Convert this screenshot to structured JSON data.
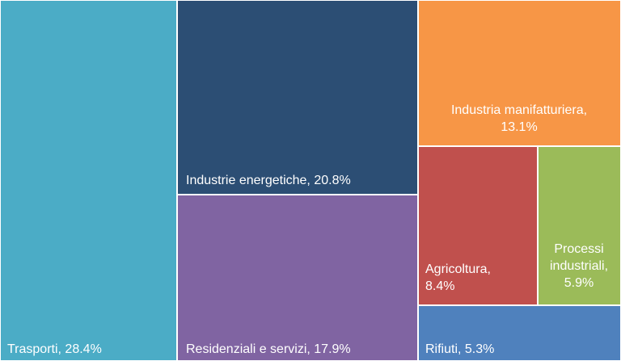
{
  "chart_data": {
    "type": "treemap",
    "title": "",
    "items": [
      {
        "label": "Trasporti",
        "value": 28.4,
        "text": "Trasporti, 28.4%",
        "color": "#4BACC6"
      },
      {
        "label": "Industrie energetiche",
        "value": 20.8,
        "text": "Industrie energetiche, 20.8%",
        "color": "#2C4E74"
      },
      {
        "label": "Residenziali e servizi",
        "value": 17.9,
        "text": "Residenziali e servizi, 17.9%",
        "color": "#8064A2"
      },
      {
        "label": "Industria manifatturiera",
        "value": 13.1,
        "text": "Industria manifatturiera,|13.1%",
        "color": "#F79646"
      },
      {
        "label": "Agricoltura",
        "value": 8.4,
        "text": "Agricoltura,|8.4%",
        "color": "#C0504D"
      },
      {
        "label": "Processi industriali",
        "value": 5.9,
        "text": "Processi|industriali,|5.9%",
        "color": "#9BBB59"
      },
      {
        "label": "Rifiuti",
        "value": 5.3,
        "text": "Rifiuti, 5.3%",
        "color": "#4F81BD"
      }
    ]
  }
}
